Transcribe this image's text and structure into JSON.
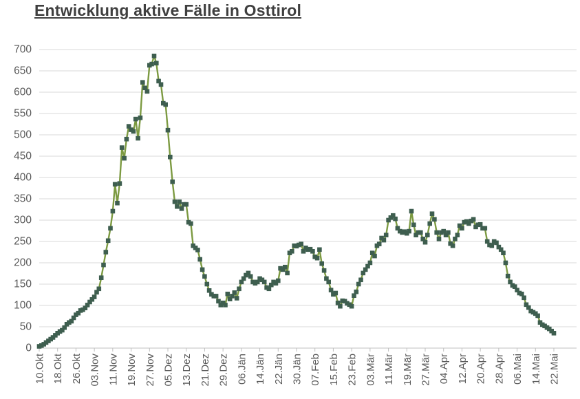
{
  "page": {
    "title": "Entwicklung aktive Fälle in Osttirol"
  },
  "chart_data": {
    "type": "line",
    "title": "Entwicklung aktive Fälle in Osttirol",
    "series_name": "aktive Fälle",
    "x_frequency": "daily",
    "x_tick_interval_points": 8,
    "x_tick_labels": [
      "10.Okt",
      "18.Okt",
      "26.Okt",
      "03.Nov",
      "11.Nov",
      "19.Nov",
      "27.Nov",
      "05.Dez",
      "13.Dez",
      "21.Dez",
      "29.Dez",
      "06.Jän",
      "14.Jän",
      "22.Jän",
      "30.Jän",
      "07.Feb",
      "15.Feb",
      "23.Feb",
      "03.Mär",
      "11.Mär",
      "19.Mär",
      "27.Mär",
      "04.Apr",
      "12.Apr",
      "20.Apr",
      "28.Apr",
      "06.Mai",
      "14.Mai",
      "22.Mai"
    ],
    "values": [
      4,
      6,
      9,
      13,
      17,
      21,
      25,
      30,
      35,
      39,
      42,
      48,
      56,
      60,
      63,
      71,
      78,
      82,
      88,
      90,
      94,
      101,
      108,
      114,
      120,
      131,
      139,
      165,
      195,
      225,
      252,
      281,
      321,
      384,
      340,
      386,
      470,
      445,
      490,
      520,
      512,
      508,
      537,
      492,
      540,
      623,
      610,
      602,
      663,
      666,
      685,
      668,
      626,
      618,
      574,
      571,
      511,
      448,
      390,
      343,
      332,
      343,
      327,
      337,
      337,
      295,
      292,
      240,
      235,
      230,
      208,
      184,
      168,
      150,
      135,
      126,
      122,
      122,
      110,
      101,
      106,
      101,
      127,
      115,
      122,
      130,
      117,
      139,
      155,
      163,
      171,
      176,
      168,
      155,
      152,
      155,
      163,
      160,
      155,
      142,
      139,
      148,
      155,
      152,
      158,
      187,
      184,
      190,
      176,
      223,
      227,
      240,
      239,
      242,
      244,
      227,
      235,
      231,
      232,
      227,
      214,
      211,
      231,
      198,
      182,
      163,
      155,
      136,
      126,
      129,
      106,
      98,
      111,
      110,
      105,
      102,
      98,
      123,
      132,
      150,
      160,
      176,
      184,
      192,
      200,
      223,
      216,
      240,
      244,
      258,
      253,
      265,
      300,
      306,
      311,
      303,
      281,
      274,
      271,
      273,
      269,
      274,
      321,
      289,
      265,
      271,
      271,
      256,
      248,
      265,
      292,
      315,
      302,
      271,
      256,
      271,
      274,
      265,
      271,
      245,
      240,
      256,
      265,
      287,
      281,
      295,
      297,
      292,
      298,
      302,
      284,
      289,
      290,
      281,
      281,
      250,
      242,
      240,
      250,
      247,
      237,
      231,
      223,
      200,
      169,
      155,
      147,
      144,
      136,
      129,
      127,
      118,
      102,
      95,
      87,
      84,
      81,
      76,
      60,
      55,
      52,
      48,
      45,
      40,
      35
    ],
    "ylim": [
      0,
      700
    ],
    "y_tick_step": 50,
    "y_tick_labels": [
      "0",
      "50",
      "100",
      "150",
      "200",
      "250",
      "300",
      "350",
      "400",
      "450",
      "500",
      "550",
      "600",
      "650",
      "700"
    ],
    "grid": "horizontal",
    "legend": "none",
    "colors": {
      "marker": "#3e5e4f",
      "line": "#7c9a41",
      "grid": "#d9d9d9",
      "axis_line": "#bfbfbf",
      "axis_text": "#595959",
      "title_text": "#3f3f3f"
    }
  }
}
